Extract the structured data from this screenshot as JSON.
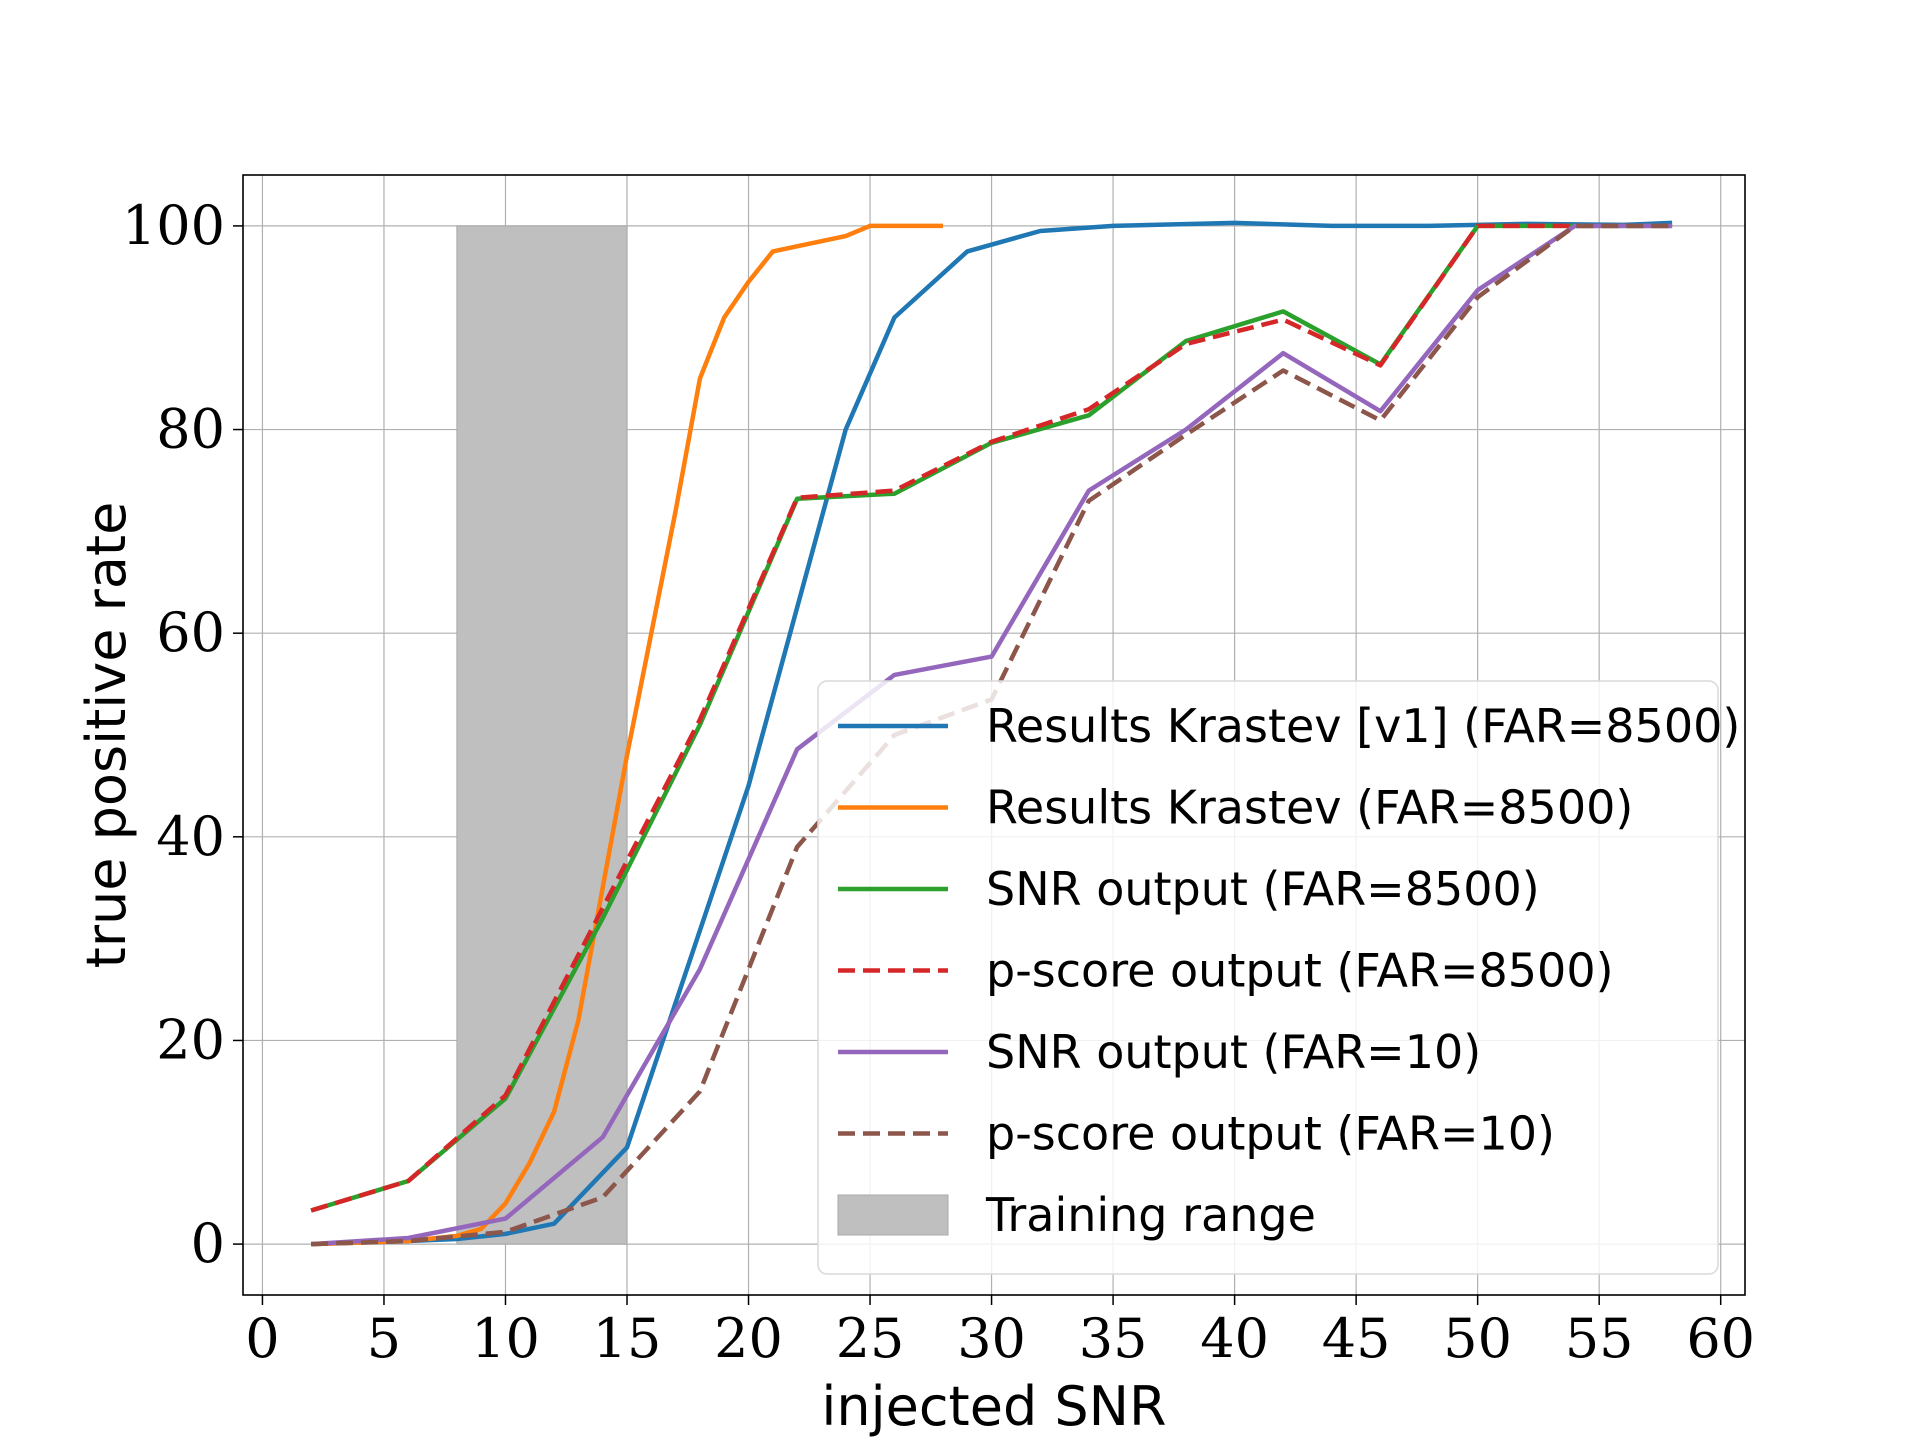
{
  "chart_data": {
    "type": "line",
    "xlabel": "injected SNR",
    "ylabel": "true positive rate",
    "xlim": [
      -0.8,
      61
    ],
    "ylim": [
      -5,
      105
    ],
    "xticks": [
      0,
      5,
      10,
      15,
      20,
      25,
      30,
      35,
      40,
      45,
      50,
      55,
      60
    ],
    "yticks": [
      0,
      20,
      40,
      60,
      80,
      100
    ],
    "grid": true,
    "legend_position": "lower-right",
    "shaded_regions": [
      {
        "name": "Training range",
        "x0": 8,
        "x1": 15,
        "y0": 0,
        "y1": 100,
        "color": "#bfbfbf"
      }
    ],
    "series": [
      {
        "name": "Results Krastev [v1] (FAR=8500)",
        "color": "#1f77b4",
        "dash": false,
        "x": [
          2,
          6,
          8,
          10,
          12,
          15,
          20,
          24,
          26,
          29,
          32,
          35,
          40,
          44,
          48,
          52,
          56,
          58
        ],
        "y": [
          0,
          0.3,
          0.5,
          1,
          2,
          9.5,
          45,
          80,
          91,
          97.5,
          99.5,
          100,
          100.3,
          100,
          100,
          100.2,
          100.1,
          100.3
        ]
      },
      {
        "name": "Results Krastev (FAR=8500)",
        "color": "#ff7f0e",
        "dash": false,
        "x": [
          2,
          6,
          8,
          9,
          10,
          11,
          12,
          13,
          14,
          15,
          16,
          17,
          18,
          19,
          20,
          21,
          22,
          23,
          24,
          25,
          26,
          27,
          28
        ],
        "y": [
          0,
          0.3,
          0.8,
          1.5,
          4,
          8,
          13,
          22,
          35,
          48,
          60,
          72,
          85,
          91,
          94.5,
          97.5,
          98,
          98.5,
          99,
          100,
          100,
          100,
          100
        ]
      },
      {
        "name": "SNR output (FAR=8500)",
        "color": "#2ca02c",
        "dash": false,
        "x": [
          2,
          6,
          10,
          14,
          18,
          22,
          26,
          30,
          34,
          38,
          42,
          46,
          50,
          54,
          58
        ],
        "y": [
          3.3,
          6.2,
          14.3,
          32,
          51,
          73.2,
          73.7,
          78.7,
          81.4,
          88.7,
          91.6,
          86.4,
          100,
          100,
          100
        ]
      },
      {
        "name": "p-score output (FAR=8500)",
        "color": "#d62728",
        "dash": true,
        "x": [
          2,
          6,
          10,
          14,
          18,
          22,
          26,
          30,
          34,
          38,
          42,
          46,
          50,
          54,
          58
        ],
        "y": [
          3.3,
          6.2,
          14.6,
          33,
          51.5,
          73.3,
          74,
          78.8,
          82,
          88.4,
          90.8,
          86.3,
          100,
          100,
          100
        ]
      },
      {
        "name": "SNR output (FAR=10)",
        "color": "#9467bd",
        "dash": false,
        "x": [
          2,
          6,
          10,
          14,
          18,
          22,
          26,
          30,
          34,
          38,
          42,
          46,
          50,
          54,
          58
        ],
        "y": [
          0,
          0.6,
          2.5,
          10.5,
          27,
          48.6,
          55.9,
          57.7,
          74,
          80,
          87.5,
          81.8,
          93.7,
          100,
          100
        ]
      },
      {
        "name": "p-score output (FAR=10)",
        "color": "#8c564b",
        "dash": true,
        "x": [
          2,
          6,
          10,
          14,
          18,
          22,
          26,
          30,
          34,
          38,
          42,
          46,
          50,
          54,
          58
        ],
        "y": [
          0,
          0.3,
          1.2,
          4.6,
          15,
          39,
          50,
          53.5,
          73,
          79.5,
          85.8,
          80.9,
          93,
          100,
          100
        ]
      }
    ]
  }
}
